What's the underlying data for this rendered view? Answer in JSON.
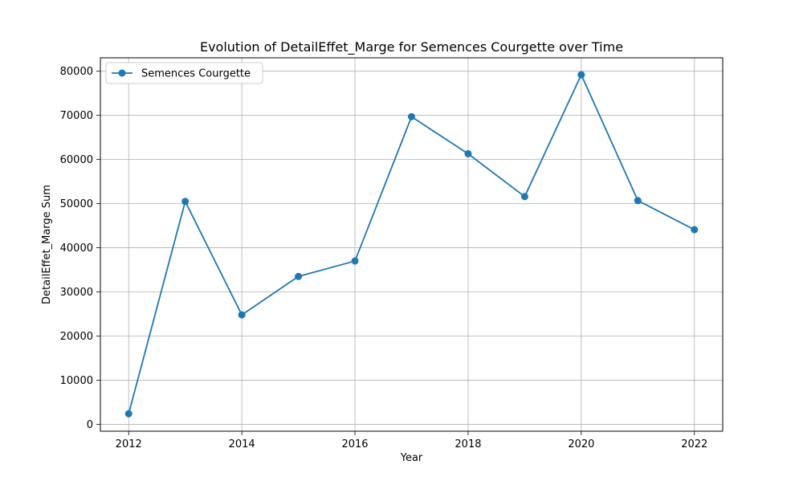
{
  "chart_data": {
    "type": "line",
    "title": "Evolution of DetailEffet_Marge for Semences Courgette over Time",
    "xlabel": "Year",
    "ylabel": "DetailEffet_Marge Sum",
    "x": [
      2012,
      2013,
      2014,
      2015,
      2016,
      2017,
      2018,
      2019,
      2020,
      2021,
      2022
    ],
    "series": [
      {
        "name": "Semences Courgette",
        "values": [
          2400,
          50500,
          24800,
          33500,
          37000,
          69700,
          61300,
          51600,
          79200,
          50700,
          44100
        ],
        "color": "#1f77b4",
        "marker": "circle"
      }
    ],
    "xlim": [
      2011.5,
      2022.5
    ],
    "ylim": [
      -1560,
      83040
    ],
    "xticks": [
      2012,
      2014,
      2016,
      2018,
      2020,
      2022
    ],
    "yticks": [
      0,
      10000,
      20000,
      30000,
      40000,
      50000,
      60000,
      70000,
      80000
    ],
    "grid": true,
    "legend_position": "top-left"
  },
  "colors": {
    "grid": "#b0b0b0",
    "axis": "#000000",
    "legend_border": "#cccccc"
  }
}
